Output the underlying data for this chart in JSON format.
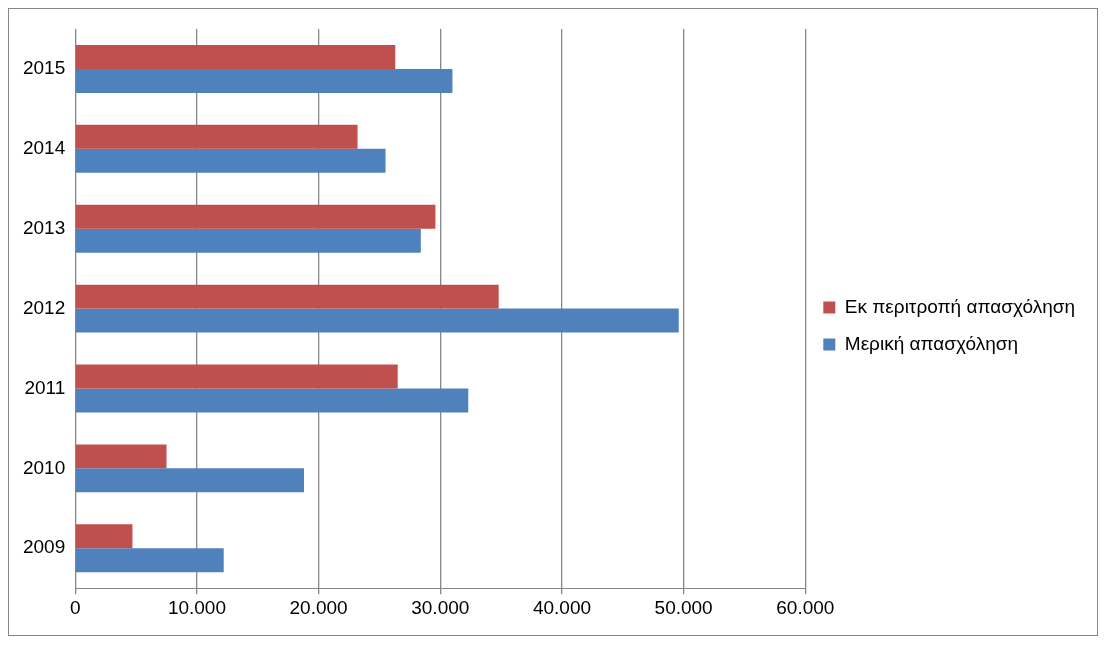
{
  "chart_data": {
    "type": "bar",
    "orientation": "horizontal",
    "categories": [
      "2015",
      "2014",
      "2013",
      "2012",
      "2011",
      "2010",
      "2009"
    ],
    "series": [
      {
        "name": "Εκ περιτροπή απασχόληση",
        "color": "#c0504d",
        "values": [
          26300,
          23200,
          29600,
          34800,
          26500,
          7500,
          4700
        ]
      },
      {
        "name": "Μερική απασχόληση",
        "color": "#4f81bd",
        "values": [
          31000,
          25500,
          28400,
          49600,
          32300,
          18800,
          12200
        ]
      }
    ],
    "xlim": [
      0,
      60000
    ],
    "xticks": [
      0,
      {
        "value": 10000,
        "label": "10.000"
      },
      {
        "value": 20000,
        "label": "20.000"
      },
      {
        "value": 30000,
        "label": "30.000"
      },
      {
        "value": 40000,
        "label": "40.000"
      },
      {
        "value": 50000,
        "label": "50.000"
      },
      {
        "value": 60000,
        "label": "60.000"
      }
    ],
    "grid": "x",
    "legend": "right"
  }
}
